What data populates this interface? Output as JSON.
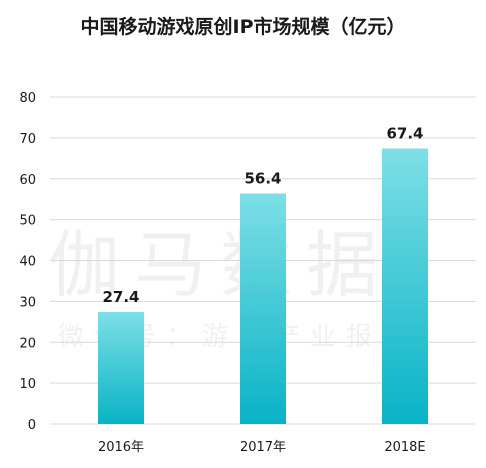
{
  "title": "中国移动游戏原创IP市场规模（亿元）",
  "watermark": {
    "main": "伽马数据",
    "sub": "微信号：游戏产业报告"
  },
  "colors": {
    "bar_top": "#7ddfe6",
    "bar_bottom": "#08b3c6",
    "grid": "#d9d9d9",
    "text": "#1a1a1a"
  },
  "chart_data": {
    "type": "bar",
    "categories": [
      "2016年",
      "2017年",
      "2018E"
    ],
    "values": [
      27.4,
      56.4,
      67.4
    ],
    "data_labels": [
      "27.4",
      "56.4",
      "67.4"
    ],
    "ylim": [
      0,
      80
    ],
    "yticks": [
      0,
      10,
      20,
      30,
      40,
      50,
      60,
      70,
      80
    ],
    "grid": true
  }
}
